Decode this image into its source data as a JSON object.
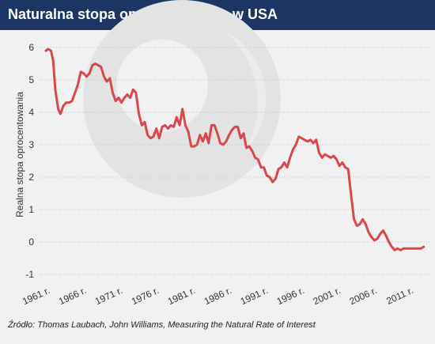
{
  "header": {
    "title": "Naturalna stopa oprocentowania w USA"
  },
  "source": "Źródło: Thomas Laubach, John Williams, Measuring the Natural Rate of Interest",
  "colors": {
    "header_bg": "#1c3563",
    "line": "#d9474b",
    "grid": "#bfc3c7",
    "background": "#f1f1f1"
  },
  "chart_data": {
    "type": "line",
    "title": "Naturalna stopa oprocentowania w USA",
    "ylabel": "Realna stopa oprocentowania",
    "xlabel": "",
    "ylim": [
      -1,
      6
    ],
    "yticks": [
      -1,
      0,
      1,
      2,
      3,
      4,
      5,
      6
    ],
    "xlim": [
      1961,
      2014
    ],
    "xticks": [
      {
        "value": 1961,
        "label": "1961 r."
      },
      {
        "value": 1966,
        "label": "1966 r."
      },
      {
        "value": 1971,
        "label": "1971 r."
      },
      {
        "value": 1976,
        "label": "1976 r."
      },
      {
        "value": 1981,
        "label": "1981 r."
      },
      {
        "value": 1986,
        "label": "1986 r."
      },
      {
        "value": 1991,
        "label": "1991 r."
      },
      {
        "value": 1996,
        "label": "1996 r."
      },
      {
        "value": 2001,
        "label": "2001 r."
      },
      {
        "value": 2006,
        "label": "2006 r."
      },
      {
        "value": 2011,
        "label": "2011 r."
      }
    ],
    "grid": "horizontal",
    "series": [
      {
        "x": [
          1961.0,
          1961.3,
          1961.7,
          1962.0,
          1962.3,
          1962.7,
          1963.0,
          1963.4,
          1963.8,
          1964.2,
          1964.6,
          1965.0,
          1965.4,
          1965.8,
          1966.2,
          1966.6,
          1967.0,
          1967.4,
          1967.8,
          1968.2,
          1968.6,
          1969.0,
          1969.4,
          1969.8,
          1970.2,
          1970.6,
          1971.0,
          1971.4,
          1971.8,
          1972.2,
          1972.6,
          1973.0,
          1973.4,
          1973.8,
          1974.2,
          1974.6,
          1975.0,
          1975.4,
          1975.8,
          1976.2,
          1976.6,
          1977.0,
          1977.4,
          1977.8,
          1978.2,
          1978.6,
          1979.0,
          1979.4,
          1979.8,
          1980.2,
          1980.6,
          1981.0,
          1981.4,
          1981.8,
          1982.2,
          1982.6,
          1983.0,
          1983.4,
          1983.8,
          1984.2,
          1984.6,
          1985.0,
          1985.4,
          1985.8,
          1986.2,
          1986.6,
          1987.0,
          1987.4,
          1987.8,
          1988.2,
          1988.6,
          1989.0,
          1989.4,
          1989.8,
          1990.2,
          1990.6,
          1991.0,
          1991.4,
          1991.8,
          1992.2,
          1992.6,
          1993.0,
          1993.4,
          1993.8,
          1994.2,
          1994.6,
          1995.0,
          1995.4,
          1995.8,
          1996.2,
          1996.6,
          1997.0,
          1997.4,
          1997.8,
          1998.2,
          1998.6,
          1999.0,
          1999.4,
          1999.8,
          2000.2,
          2000.6,
          2001.0,
          2001.4,
          2001.8,
          2002.2,
          2002.6,
          2003.0,
          2003.4,
          2003.8,
          2004.2,
          2004.6,
          2005.0,
          2005.4,
          2005.8,
          2006.2,
          2006.6,
          2007.0,
          2007.4,
          2007.8,
          2008.2,
          2008.6,
          2009.0,
          2009.4,
          2009.8,
          2010.2,
          2010.6,
          2011.0,
          2011.4,
          2011.8,
          2012.2,
          2012.6,
          2013.0
        ],
        "y": [
          5.9,
          5.95,
          5.9,
          5.6,
          4.7,
          4.1,
          3.95,
          4.2,
          4.3,
          4.3,
          4.35,
          4.6,
          4.85,
          5.25,
          5.2,
          5.1,
          5.2,
          5.45,
          5.5,
          5.45,
          5.4,
          5.1,
          4.95,
          5.05,
          4.6,
          4.35,
          4.45,
          4.3,
          4.45,
          4.55,
          4.45,
          4.7,
          4.6,
          3.95,
          3.6,
          3.7,
          3.3,
          3.2,
          3.25,
          3.5,
          3.2,
          3.55,
          3.6,
          3.5,
          3.6,
          3.55,
          3.85,
          3.6,
          4.1,
          3.6,
          3.4,
          2.95,
          2.95,
          3.0,
          3.3,
          3.1,
          3.35,
          3.05,
          3.6,
          3.6,
          3.35,
          3.05,
          3.0,
          3.1,
          3.3,
          3.45,
          3.55,
          3.55,
          3.2,
          3.35,
          2.9,
          2.95,
          2.8,
          2.6,
          2.55,
          2.3,
          2.3,
          2.05,
          2.0,
          1.85,
          1.95,
          2.25,
          2.3,
          2.45,
          2.3,
          2.6,
          2.85,
          3.0,
          3.25,
          3.2,
          3.15,
          3.1,
          3.15,
          3.05,
          3.15,
          2.75,
          2.6,
          2.7,
          2.65,
          2.6,
          2.65,
          2.55,
          2.35,
          2.45,
          2.3,
          2.25,
          1.45,
          0.7,
          0.5,
          0.55,
          0.7,
          0.55,
          0.3,
          0.15,
          0.05,
          0.1,
          0.25,
          0.35,
          0.2,
          0.0,
          -0.15,
          -0.25,
          -0.2,
          -0.25,
          -0.2,
          -0.2,
          -0.2,
          -0.2,
          -0.2,
          -0.2,
          -0.2,
          -0.15
        ]
      }
    ]
  }
}
